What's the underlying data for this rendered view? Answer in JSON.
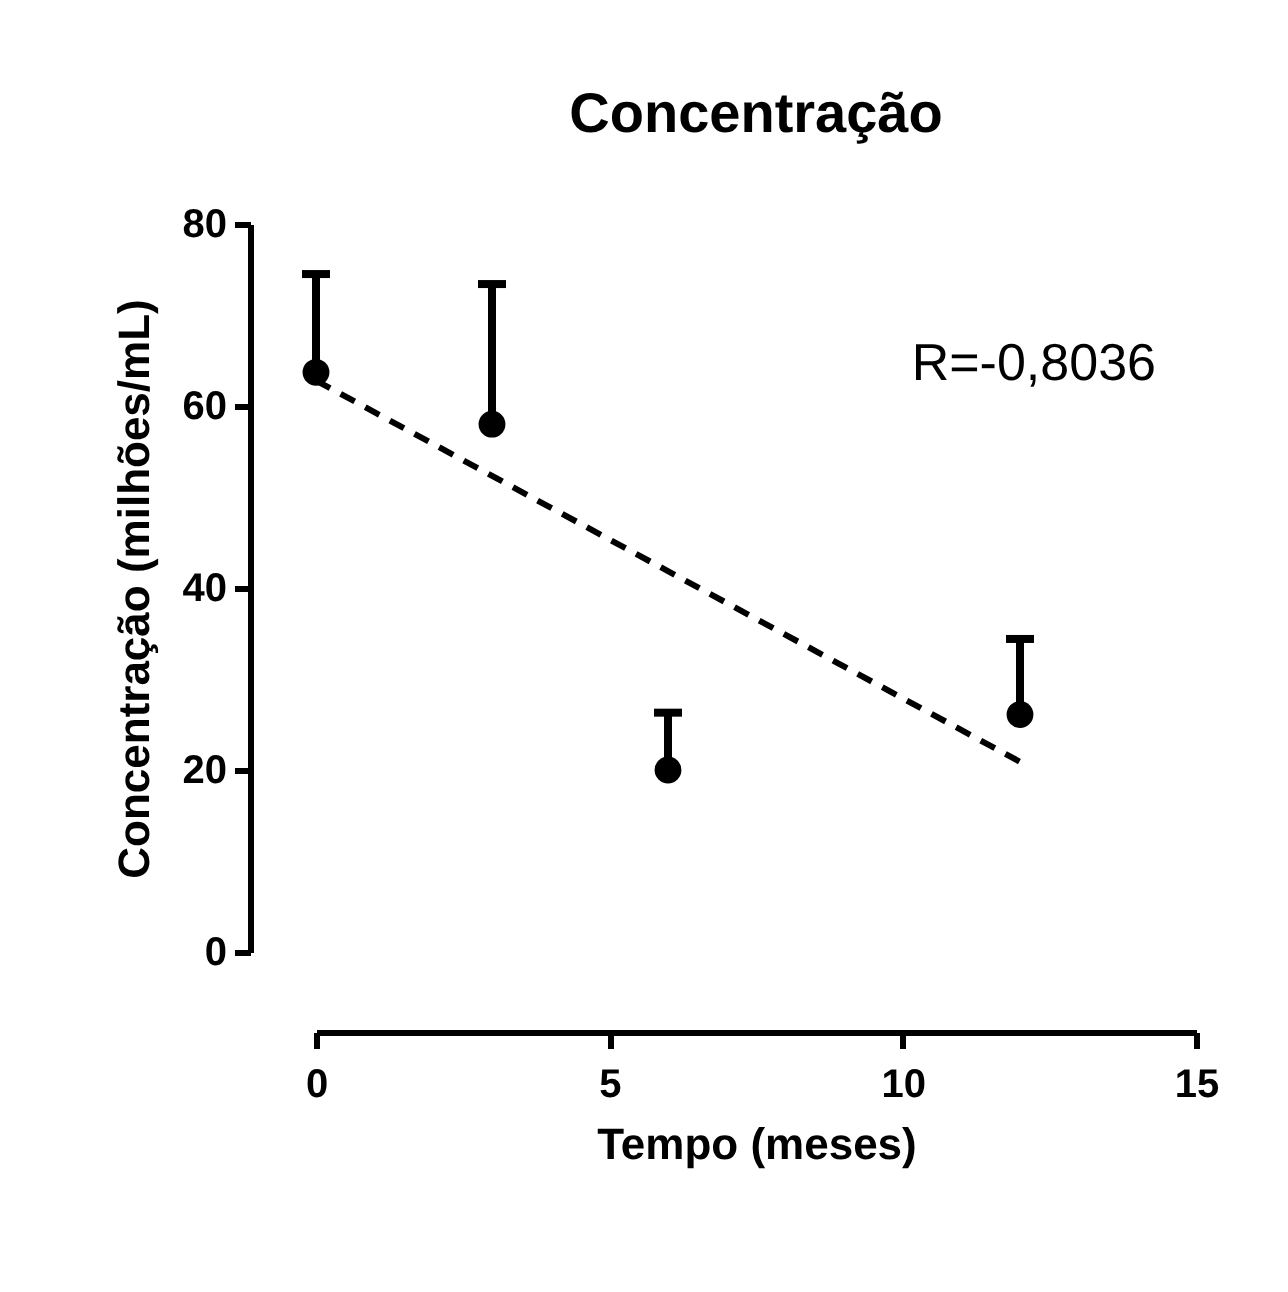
{
  "chart_data": {
    "type": "scatter",
    "title": "Concentração",
    "xlabel": "Tempo (meses)",
    "ylabel": "Concentração  (milhões/mL)",
    "x": [
      0,
      3,
      6,
      12
    ],
    "series": [
      {
        "type": "scatter",
        "color": "#000000",
        "values": [
          63.7,
          58.0,
          20.0,
          26.1
        ],
        "errors": [
          [
            63.7,
            74.5
          ],
          [
            58.0,
            73.4
          ],
          [
            20.0,
            26.3
          ],
          [
            26.1,
            34.4
          ]
        ],
        "marker": "circle"
      },
      {
        "type": "line",
        "color": "#000000",
        "x": [
          0,
          12
        ],
        "values": [
          62.8,
          20.9
        ],
        "line_style": "dashed",
        "marker": "none"
      }
    ],
    "annotations": [
      "R=-0,8036"
    ],
    "xlim": [
      0,
      15
    ],
    "ylim": [
      0,
      80
    ],
    "xticks": [
      0,
      5,
      10,
      15
    ],
    "yticks": [
      0,
      20,
      40,
      60,
      80
    ],
    "grid": false,
    "legend": false
  }
}
